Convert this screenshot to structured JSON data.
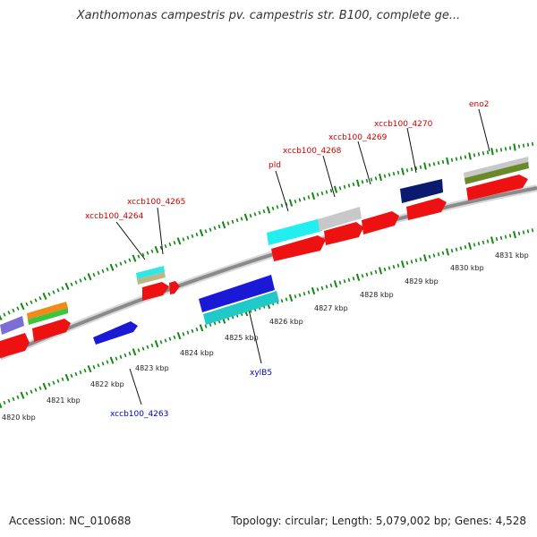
{
  "title": "Xanthomonas campestris pv. campestris str. B100, complete ge...",
  "footer": {
    "accession": "Accession: NC_010688",
    "summary": "Topology: circular; Length: 5,079,002 bp; Genes: 4,528"
  },
  "colors": {
    "gene_red": "#ee1111",
    "label_red": "#cc0000",
    "label_blue": "#0000cc",
    "tick_green": "#118811",
    "backbone": "#888888"
  },
  "kbp_labels": [
    "4820 kbp",
    "4821 kbp",
    "4822 kbp",
    "4823 kbp",
    "4824 kbp",
    "4825 kbp",
    "4826 kbp",
    "4827 kbp",
    "4828 kbp",
    "4829 kbp",
    "4830 kbp",
    "4831 kbp"
  ],
  "gene_labels": [
    "xccb100_4264",
    "xccb100_4265",
    "pld",
    "xccb100_4268",
    "xccb100_4269",
    "xccb100_4270",
    "eno2",
    "xylB5",
    "xccb100_4263"
  ]
}
